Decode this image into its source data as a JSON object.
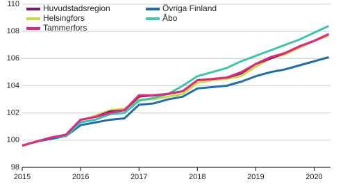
{
  "chart_data": {
    "type": "line",
    "x": [
      2015,
      2015.25,
      2015.5,
      2015.75,
      2016,
      2016.25,
      2016.5,
      2016.75,
      2017,
      2017.25,
      2017.5,
      2017.75,
      2018,
      2018.25,
      2018.5,
      2018.75,
      2019,
      2019.25,
      2019.5,
      2019.75,
      2020,
      2020.25
    ],
    "xlim": [
      2015,
      2020.28
    ],
    "xticks": [
      2015,
      2016,
      2017,
      2018,
      2019,
      2020
    ],
    "ylim": [
      98,
      110
    ],
    "yticks": [
      98,
      100,
      102,
      104,
      106,
      108,
      110
    ],
    "grid": true,
    "series": [
      {
        "name": "Helsingfors",
        "color": "#c9d94a",
        "values": [
          99.6,
          99.9,
          100.2,
          100.3,
          101.4,
          101.8,
          102.2,
          102.3,
          103.0,
          103.0,
          103.2,
          103.4,
          104.2,
          104.4,
          104.5,
          104.7,
          105.4,
          106.0,
          106.3,
          106.8,
          107.3,
          107.7
        ]
      },
      {
        "name": "Övriga Finland",
        "color": "#1f6fa6",
        "values": [
          99.6,
          99.9,
          100.1,
          100.3,
          101.1,
          101.3,
          101.5,
          101.6,
          102.6,
          102.7,
          103.0,
          103.2,
          103.8,
          103.9,
          104.0,
          104.3,
          104.7,
          105.0,
          105.2,
          105.5,
          105.8,
          106.1
        ]
      },
      {
        "name": "Åbo",
        "color": "#3fc2b0",
        "values": [
          99.6,
          99.9,
          100.2,
          100.3,
          101.3,
          101.5,
          101.9,
          102.0,
          102.9,
          103.1,
          103.4,
          104.0,
          104.7,
          105.0,
          105.3,
          105.8,
          106.2,
          106.6,
          107.0,
          107.4,
          107.9,
          108.4
        ]
      },
      {
        "name": "Huvudstadsregion",
        "color": "#7d1a6e",
        "values": [
          99.6,
          99.9,
          100.2,
          100.4,
          101.5,
          101.7,
          102.1,
          102.2,
          103.2,
          103.3,
          103.4,
          103.6,
          104.4,
          104.5,
          104.6,
          104.9,
          105.6,
          106.0,
          106.4,
          106.9,
          107.3,
          107.8
        ]
      },
      {
        "name": "Tammerfors",
        "color": "#e0287c",
        "values": [
          99.6,
          99.9,
          100.2,
          100.4,
          101.5,
          101.7,
          102.0,
          102.2,
          103.3,
          103.3,
          103.4,
          103.6,
          104.4,
          104.5,
          104.6,
          105.0,
          105.6,
          106.1,
          106.4,
          106.9,
          107.3,
          107.8
        ]
      }
    ]
  }
}
